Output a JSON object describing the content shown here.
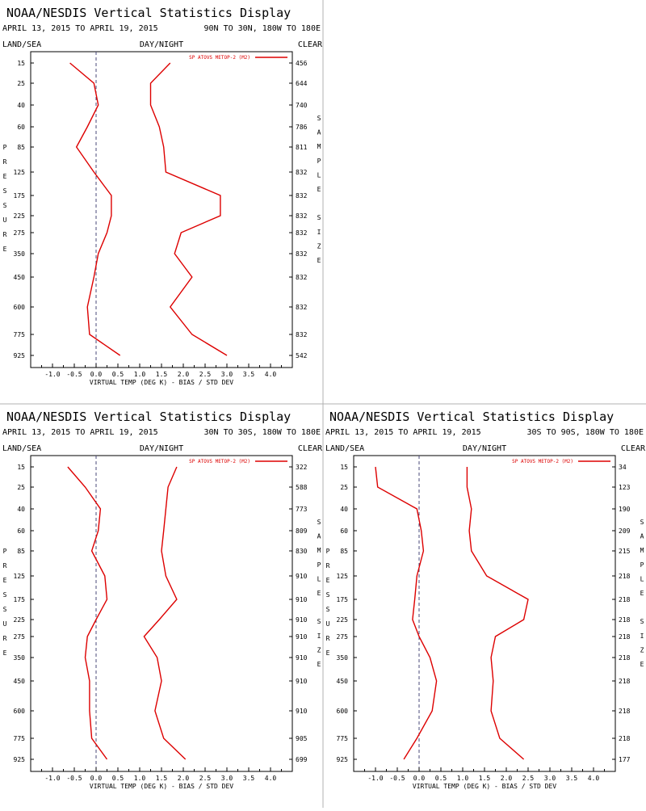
{
  "colors": {
    "series": "#dd0000",
    "axis": "#000000",
    "zero_line": "#4a4a7a",
    "divider": "#b0b0b0"
  },
  "panel_title": "NOAA/NESDIS Vertical Statistics Display",
  "header_labels": {
    "left": "LAND/SEA",
    "center": "DAY/NIGHT",
    "right": "CLEAR"
  },
  "x_axis_label": "VIRTUAL TEMP (DEG K) - BIAS / STD DEV",
  "pressure_label": [
    "P",
    "R",
    "E",
    "S",
    "S",
    "U",
    "R",
    "E"
  ],
  "sample_size_label": [
    "S",
    "A",
    "M",
    "P",
    "L",
    "E",
    "",
    "S",
    "I",
    "Z",
    "E"
  ],
  "chart_data": [
    {
      "type": "line",
      "date_range": "APRIL 13, 2015 TO APRIL 19, 2015",
      "region": "90N TO 30N, 180W TO 180E",
      "legend": "SP ATOVS METOP-2 (M2)",
      "xlim": [
        -1.5,
        4.5
      ],
      "x_ticks": [
        "-1.0",
        "-0.5",
        "0.0",
        "0.5",
        "1.0",
        "1.5",
        "2.0",
        "2.5",
        "3.0",
        "3.5",
        "4.0"
      ],
      "pressure_levels": [
        "15",
        "25",
        "40",
        "60",
        "85",
        "125",
        "175",
        "225",
        "275",
        "350",
        "450",
        "600",
        "775",
        "925"
      ],
      "sample_sizes": [
        "456",
        "644",
        "740",
        "786",
        "811",
        "832",
        "832",
        "832",
        "832",
        "832",
        "832",
        "832",
        "832",
        "542"
      ],
      "bias": [
        -0.6,
        -0.05,
        0.05,
        -0.2,
        -0.45,
        -0.05,
        0.35,
        0.35,
        0.25,
        0.05,
        -0.05,
        -0.2,
        -0.15,
        0.55
      ],
      "std_dev": [
        1.7,
        1.25,
        1.25,
        1.45,
        1.55,
        1.6,
        2.85,
        2.85,
        1.95,
        1.8,
        2.2,
        1.7,
        2.2,
        3.0
      ]
    },
    {
      "type": "line",
      "date_range": "APRIL 13, 2015 TO APRIL 19, 2015",
      "region": "30N TO 30S, 180W TO 180E",
      "legend": "SP ATOVS METOP-2 (M2)",
      "xlim": [
        -1.5,
        4.5
      ],
      "x_ticks": [
        "-1.0",
        "-0.5",
        "0.0",
        "0.5",
        "1.0",
        "1.5",
        "2.0",
        "2.5",
        "3.0",
        "3.5",
        "4.0"
      ],
      "pressure_levels": [
        "15",
        "25",
        "40",
        "60",
        "85",
        "125",
        "175",
        "225",
        "275",
        "350",
        "450",
        "600",
        "775",
        "925"
      ],
      "sample_sizes": [
        "322",
        "588",
        "773",
        "809",
        "830",
        "910",
        "910",
        "910",
        "910",
        "910",
        "910",
        "910",
        "905",
        "699"
      ],
      "bias": [
        -0.65,
        -0.25,
        0.1,
        0.05,
        -0.1,
        0.2,
        0.25,
        0.0,
        -0.2,
        -0.25,
        -0.15,
        -0.15,
        -0.1,
        0.25
      ],
      "std_dev": [
        1.85,
        1.65,
        1.6,
        1.55,
        1.5,
        1.6,
        1.85,
        1.45,
        1.1,
        1.4,
        1.5,
        1.35,
        1.55,
        2.05
      ]
    },
    {
      "type": "line",
      "date_range": "APRIL 13, 2015 TO APRIL 19, 2015",
      "region": "30S TO 90S, 180W TO 180E",
      "legend": "SP ATOVS METOP-2 (M2)",
      "xlim": [
        -1.5,
        4.5
      ],
      "x_ticks": [
        "-1.0",
        "-0.5",
        "0.0",
        "0.5",
        "1.0",
        "1.5",
        "2.0",
        "2.5",
        "3.0",
        "3.5",
        "4.0"
      ],
      "pressure_levels": [
        "15",
        "25",
        "40",
        "60",
        "85",
        "125",
        "175",
        "225",
        "275",
        "350",
        "450",
        "600",
        "775",
        "925"
      ],
      "sample_sizes": [
        "34",
        "123",
        "190",
        "209",
        "215",
        "218",
        "218",
        "218",
        "218",
        "218",
        "218",
        "218",
        "218",
        "177"
      ],
      "bias": [
        -1.0,
        -0.95,
        -0.05,
        0.05,
        0.1,
        -0.05,
        -0.1,
        -0.15,
        0.0,
        0.25,
        0.4,
        0.3,
        -0.05,
        -0.35
      ],
      "std_dev": [
        1.1,
        1.1,
        1.2,
        1.15,
        1.2,
        1.55,
        2.5,
        2.4,
        1.75,
        1.65,
        1.7,
        1.65,
        1.85,
        2.4
      ]
    }
  ]
}
